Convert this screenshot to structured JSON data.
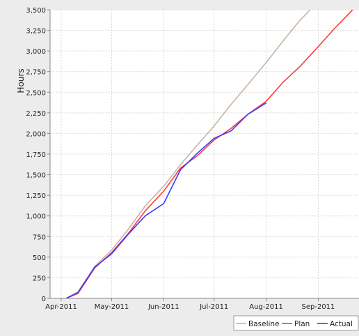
{
  "chart_data": {
    "type": "line",
    "title": "",
    "xlabel": "",
    "ylabel": "Hours",
    "x_axis": {
      "type": "date",
      "range": [
        "2011-04-01",
        "2011-10-01"
      ],
      "ticks": [
        {
          "date": "2011-04-01",
          "label": "Apr-2011"
        },
        {
          "date": "2011-05-01",
          "label": "May-2011"
        },
        {
          "date": "2011-06-01",
          "label": "Jun-2011"
        },
        {
          "date": "2011-07-01",
          "label": "Jul-2011"
        },
        {
          "date": "2011-08-01",
          "label": "Aug-2011"
        },
        {
          "date": "2011-09-01",
          "label": "Sep-2011"
        },
        {
          "date": "2011-10-01",
          "label": "O"
        }
      ]
    },
    "y_axis": {
      "range": [
        0,
        3500
      ],
      "ticks": [
        {
          "value": 0,
          "label": "0"
        },
        {
          "value": 250,
          "label": "250"
        },
        {
          "value": 500,
          "label": "500"
        },
        {
          "value": 750,
          "label": "750"
        },
        {
          "value": 1000,
          "label": "1,000"
        },
        {
          "value": 1250,
          "label": "1,250"
        },
        {
          "value": 1500,
          "label": "1,500"
        },
        {
          "value": 1750,
          "label": "1,750"
        },
        {
          "value": 2000,
          "label": "2,000"
        },
        {
          "value": 2250,
          "label": "2,250"
        },
        {
          "value": 2500,
          "label": "2,500"
        },
        {
          "value": 2750,
          "label": "2,750"
        },
        {
          "value": 3000,
          "label": "3,000"
        },
        {
          "value": 3250,
          "label": "3,250"
        },
        {
          "value": 3500,
          "label": "3,500"
        }
      ]
    },
    "grid": true,
    "legend_position": "bottom-right",
    "series": [
      {
        "name": "Baseline",
        "color": "#c8b4a4",
        "points": [
          [
            "2011-04-04",
            0
          ],
          [
            "2011-04-11",
            80
          ],
          [
            "2011-04-21",
            390
          ],
          [
            "2011-05-01",
            585
          ],
          [
            "2011-05-11",
            840
          ],
          [
            "2011-05-21",
            1120
          ],
          [
            "2011-06-01",
            1360
          ],
          [
            "2011-06-11",
            1620
          ],
          [
            "2011-06-21",
            1860
          ],
          [
            "2011-07-01",
            2090
          ],
          [
            "2011-07-11",
            2350
          ],
          [
            "2011-07-21",
            2590
          ],
          [
            "2011-08-01",
            2860
          ],
          [
            "2011-08-11",
            3120
          ],
          [
            "2011-08-21",
            3370
          ],
          [
            "2011-08-31",
            3580
          ]
        ]
      },
      {
        "name": "Plan",
        "color": "#ff3b3b",
        "points": [
          [
            "2011-04-04",
            0
          ],
          [
            "2011-04-11",
            60
          ],
          [
            "2011-04-21",
            370
          ],
          [
            "2011-05-01",
            555
          ],
          [
            "2011-05-11",
            790
          ],
          [
            "2011-05-21",
            1060
          ],
          [
            "2011-06-01",
            1300
          ],
          [
            "2011-06-11",
            1580
          ],
          [
            "2011-06-21",
            1730
          ],
          [
            "2011-07-01",
            1920
          ],
          [
            "2011-07-11",
            2060
          ],
          [
            "2011-07-21",
            2230
          ],
          [
            "2011-08-01",
            2390
          ],
          [
            "2011-08-11",
            2620
          ],
          [
            "2011-08-21",
            2810
          ],
          [
            "2011-08-31",
            3030
          ],
          [
            "2011-09-11",
            3280
          ],
          [
            "2011-09-21",
            3490
          ],
          [
            "2011-09-30",
            3680
          ]
        ]
      },
      {
        "name": "Actual",
        "color": "#3b3bff",
        "points": [
          [
            "2011-04-04",
            0
          ],
          [
            "2011-04-11",
            70
          ],
          [
            "2011-04-21",
            380
          ],
          [
            "2011-05-01",
            540
          ],
          [
            "2011-05-11",
            780
          ],
          [
            "2011-05-21",
            1000
          ],
          [
            "2011-06-01",
            1150
          ],
          [
            "2011-06-11",
            1560
          ],
          [
            "2011-06-21",
            1760
          ],
          [
            "2011-07-01",
            1940
          ],
          [
            "2011-07-11",
            2030
          ],
          [
            "2011-07-21",
            2230
          ],
          [
            "2011-08-01",
            2370
          ]
        ]
      }
    ]
  }
}
